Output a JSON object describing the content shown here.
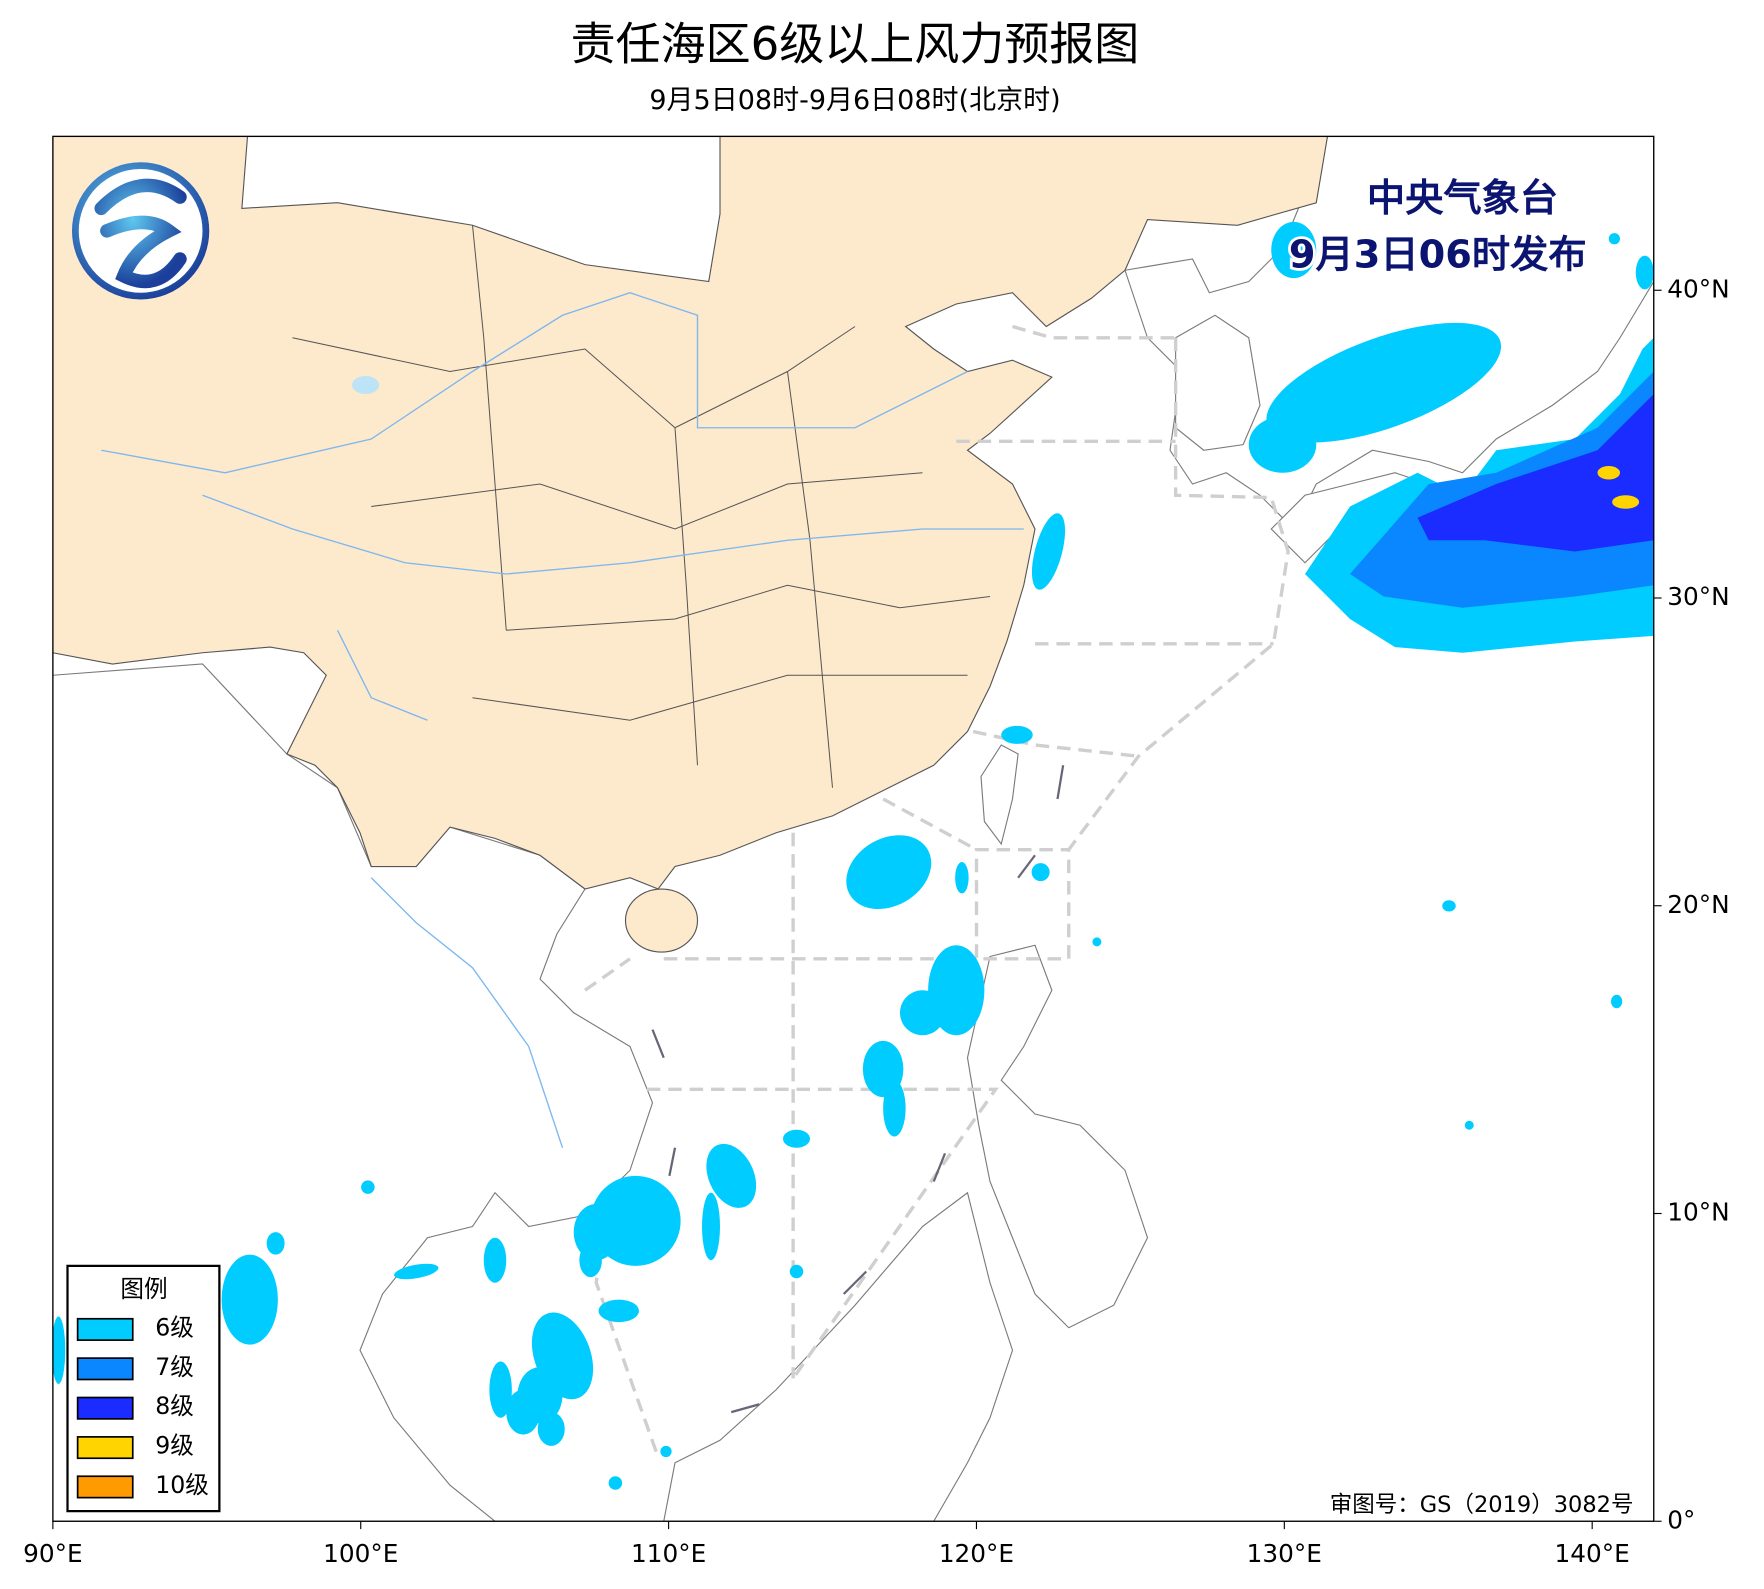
{
  "header": {
    "title": "责任海区6级以上风力预报图",
    "subtitle": "9月5日08时-9月6日08时(北京时)"
  },
  "publisher": {
    "name": "中央气象台",
    "issued": "9月3日06时发布"
  },
  "map": {
    "xlim": [
      90,
      142
    ],
    "ylim": [
      0,
      45
    ],
    "xticks": [
      {
        "value": 90,
        "label": "90°E"
      },
      {
        "value": 100,
        "label": "100°E"
      },
      {
        "value": 110,
        "label": "110°E"
      },
      {
        "value": 120,
        "label": "120°E"
      },
      {
        "value": 130,
        "label": "130°E"
      },
      {
        "value": 140,
        "label": "140°E"
      }
    ],
    "yticks": [
      {
        "value": 0,
        "label": "0°"
      },
      {
        "value": 10,
        "label": "10°N"
      },
      {
        "value": 20,
        "label": "20°N"
      },
      {
        "value": 30,
        "label": "30°N"
      },
      {
        "value": 40,
        "label": "40°N"
      }
    ]
  },
  "legend": {
    "title": "图例",
    "items": [
      {
        "label": "6级",
        "color": "#00ccff"
      },
      {
        "label": "7级",
        "color": "#0a86ff"
      },
      {
        "label": "8级",
        "color": "#1a2cff"
      },
      {
        "label": "9级",
        "color": "#ffd400"
      },
      {
        "label": "10级",
        "color": "#ff9a00"
      }
    ]
  },
  "approval": "审图号：GS（2019）3082号"
}
